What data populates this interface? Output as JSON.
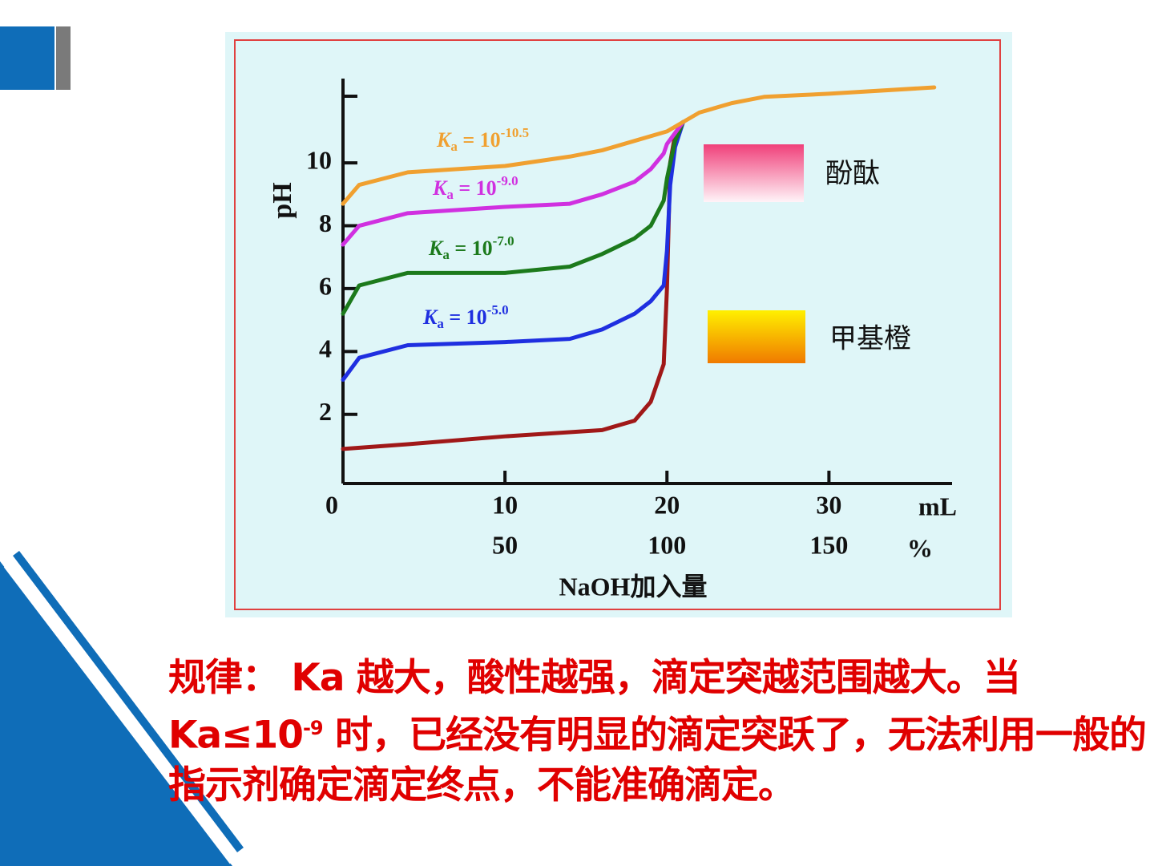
{
  "chart_data": {
    "type": "line",
    "ylabel": "pH",
    "xlabel": "NaOH加入量",
    "xunit": "mL",
    "x2unit": "%",
    "xlim": [
      0,
      37.6
    ],
    "xticks": [
      0,
      10,
      20,
      30
    ],
    "x2lim": [
      0,
      188
    ],
    "x2ticks": [
      50,
      100,
      150
    ],
    "ylim": [
      -0.2,
      12.63
    ],
    "yticks": [
      2,
      4,
      6,
      8,
      10
    ],
    "series": [
      {
        "color": "#a01818",
        "x": [
          0,
          4,
          10,
          16,
          18,
          19,
          19.8,
          20,
          20.2,
          20.5,
          21
        ],
        "values": [
          0.9,
          1.05,
          1.3,
          1.5,
          1.8,
          2.4,
          3.6,
          6.0,
          10.0,
          10.9,
          11.3
        ]
      },
      {
        "color": "#1f2fe0",
        "label": {
          "k": "K",
          "sub": "a",
          "eq": " = 10",
          "sup": "-5.0"
        },
        "x": [
          0,
          1,
          4,
          10,
          14,
          16,
          18,
          19,
          19.8,
          20,
          20.2,
          20.5,
          21
        ],
        "values": [
          3.1,
          3.8,
          4.2,
          4.3,
          4.4,
          4.7,
          5.2,
          5.6,
          6.1,
          7.2,
          9.3,
          10.5,
          11.3
        ]
      },
      {
        "color": "#1c7a1c",
        "label": {
          "k": "K",
          "sub": "a",
          "eq": " = 10",
          "sup": "-7.0"
        },
        "x": [
          0,
          1,
          4,
          10,
          14,
          16,
          18,
          19,
          19.8,
          20,
          20.5,
          21
        ],
        "values": [
          5.2,
          6.1,
          6.5,
          6.5,
          6.7,
          7.1,
          7.6,
          8.0,
          8.8,
          9.5,
          10.7,
          11.3
        ]
      },
      {
        "color": "#d030e0",
        "label": {
          "k": "K",
          "sub": "a",
          "eq": " = 10",
          "sup": "-9.0"
        },
        "x": [
          0,
          1,
          4,
          10,
          14,
          16,
          18,
          19,
          19.8,
          20,
          21
        ],
        "values": [
          7.4,
          8.0,
          8.4,
          8.6,
          8.7,
          9.0,
          9.4,
          9.8,
          10.3,
          10.6,
          11.3
        ]
      },
      {
        "color": "#f0a030",
        "label": {
          "k": "K",
          "sub": "a",
          "eq": " = 10",
          "sup": "-10.5"
        },
        "x": [
          0,
          1,
          4,
          10,
          14,
          16,
          18,
          20,
          21,
          22,
          24,
          26,
          30,
          36.5
        ],
        "values": [
          8.7,
          9.3,
          9.7,
          9.9,
          10.2,
          10.4,
          10.7,
          11.0,
          11.3,
          11.6,
          11.9,
          12.1,
          12.2,
          12.4
        ]
      }
    ],
    "indicators": [
      "酚酞",
      "甲基橙"
    ]
  },
  "rule": {
    "text": "规律： Ka 越大，酸性越强，滴定突越范围越大。当 Ka≤10",
    "sup": "-9",
    "rest": " 时，已经没有明显的滴定突跃了，无法利用一般的指示剂确定滴定终点，不能准确滴定。"
  }
}
